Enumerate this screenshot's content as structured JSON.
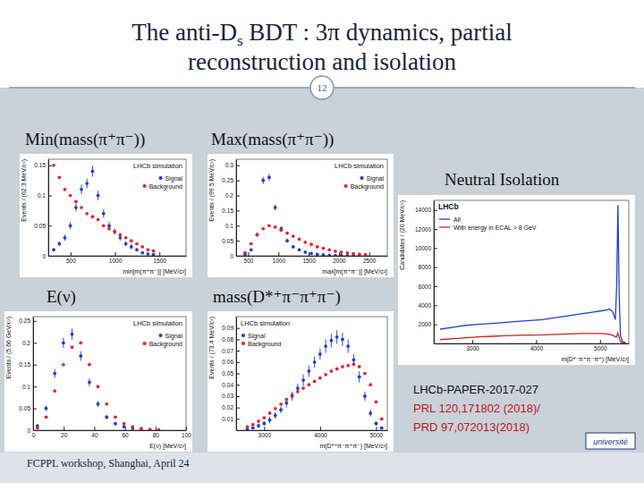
{
  "slide": {
    "title_lines": [
      [
        "The anti-D",
        "s",
        " BDT : 3π dynamics, partial"
      ],
      [
        "reconstruction and isolation"
      ]
    ],
    "page_number": "12",
    "references": [
      {
        "text": "LHCb-PAPER-2017-027",
        "color": "#111111"
      },
      {
        "text": "PRL 120,171802 (2018)/",
        "color": "#c0141c"
      },
      {
        "text": "PRD 97,072013(2018)",
        "color": "#c0141c"
      }
    ],
    "footer": "FCPPL workshop, Shanghai, April 24",
    "logo": "université"
  },
  "chart_data": [
    {
      "type": "scatter",
      "title": "Min(mass(π⁺π⁻))",
      "annotation": "LHCb simulation",
      "x_label": "min[m(π⁺π⁻)] [MeV/c²]",
      "y_label": "Events / (62.3 MeV/c²)",
      "x": [
        311,
        374,
        436,
        498,
        561,
        623,
        685,
        748,
        810,
        872,
        935,
        997,
        1059,
        1122,
        1184,
        1246,
        1309,
        1371,
        1433
      ],
      "series": [
        {
          "name": "Signal",
          "color": "#1c3bd6",
          "marker": "circle",
          "values": [
            0.01,
            0.02,
            0.03,
            0.05,
            0.08,
            0.11,
            0.12,
            0.14,
            0.1,
            0.07,
            0.05,
            0.04,
            0.03,
            0.02,
            0.015,
            0.01,
            0.005,
            0.003,
            0.002
          ],
          "errors": [
            0.003,
            0.004,
            0.005,
            0.006,
            0.007,
            0.008,
            0.008,
            0.009,
            0.008,
            0.007,
            0.006,
            0.005,
            0.005,
            0.004,
            0.004,
            0.003,
            0.002,
            0.002,
            0.002
          ]
        },
        {
          "name": "Background",
          "color": "#e3242b",
          "marker": "circle",
          "values": [
            0.15,
            0.13,
            0.11,
            0.1,
            0.09,
            0.08,
            0.07,
            0.065,
            0.06,
            0.05,
            0.045,
            0.04,
            0.035,
            0.03,
            0.025,
            0.02,
            0.015,
            0.01,
            0.008
          ]
        }
      ],
      "xlim": [
        250,
        1800
      ],
      "xticks": [
        500,
        1000,
        1500
      ],
      "ylim": [
        0,
        0.16
      ],
      "yticks": [
        0,
        0.05,
        0.1,
        0.15
      ],
      "legend": "upper right"
    },
    {
      "type": "scatter",
      "title": "Max(mass(π⁺π⁻))",
      "annotation": "LHCb simulation",
      "x_label": "max[m(π⁺π⁻)] [MeV/c²]",
      "y_label": "Events / (99.5 MeV/c²)",
      "x": [
        448,
        548,
        647,
        747,
        846,
        946,
        1045,
        1145,
        1244,
        1344,
        1443,
        1543,
        1642,
        1742,
        1841,
        1941,
        2040,
        2140,
        2239,
        2339,
        2438
      ],
      "series": [
        {
          "name": "Signal",
          "color": "#1c3bd6",
          "marker": "circle",
          "values": [
            0.005,
            0.02,
            0.07,
            0.25,
            0.26,
            0.16,
            0.09,
            0.05,
            0.03,
            0.02,
            0.012,
            0.008,
            0.005,
            0.003,
            0.002,
            0.001,
            0.001,
            0,
            0,
            0,
            0
          ],
          "errors": [
            0.002,
            0.004,
            0.007,
            0.012,
            0.012,
            0.01,
            0.008,
            0.006,
            0.005,
            0.004,
            0.003,
            0.003,
            0.002,
            0.002,
            0.001,
            0.001,
            0.001,
            0.001,
            0.001,
            0.001,
            0.001
          ]
        },
        {
          "name": "Background",
          "color": "#e3242b",
          "marker": "circle",
          "values": [
            0.01,
            0.04,
            0.07,
            0.09,
            0.1,
            0.095,
            0.085,
            0.075,
            0.065,
            0.055,
            0.045,
            0.038,
            0.03,
            0.025,
            0.02,
            0.015,
            0.012,
            0.009,
            0.007,
            0.005,
            0.004
          ]
        }
      ],
      "xlim": [
        300,
        2800
      ],
      "xticks": [
        500,
        1000,
        1500,
        2000,
        2500
      ],
      "ylim": [
        0,
        0.32
      ],
      "yticks": [
        0,
        0.05,
        0.1,
        0.15,
        0.2,
        0.25,
        0.3
      ],
      "legend": "upper right"
    },
    {
      "type": "scatter",
      "title": "E(ν)",
      "annotation": "LHCb simulation",
      "x_label": "E(ν) [MeV/c²]",
      "y_label": "Events / (5.66 GeV/c²)",
      "x": [
        2.83,
        8.49,
        14.15,
        19.81,
        25.47,
        31.13,
        36.79,
        42.45,
        48.11,
        53.77,
        59.43,
        65.09,
        70.75,
        76.41,
        82.07
      ],
      "series": [
        {
          "name": "Signal",
          "color": "#1c3bd6",
          "marker": "circle",
          "values": [
            0.01,
            0.05,
            0.13,
            0.2,
            0.22,
            0.17,
            0.11,
            0.06,
            0.03,
            0.015,
            0.008,
            0.004,
            0.002,
            0.001,
            0
          ],
          "errors": [
            0.003,
            0.006,
            0.01,
            0.012,
            0.013,
            0.011,
            0.009,
            0.007,
            0.005,
            0.004,
            0.003,
            0.002,
            0.001,
            0.001,
            0.001
          ]
        },
        {
          "name": "Background",
          "color": "#e3242b",
          "marker": "circle",
          "values": [
            0.005,
            0.03,
            0.09,
            0.15,
            0.19,
            0.2,
            0.15,
            0.1,
            0.06,
            0.03,
            0.015,
            0.008,
            0.004,
            0.002,
            0.001
          ]
        }
      ],
      "xlim": [
        0,
        100
      ],
      "xticks": [
        0,
        20,
        40,
        60,
        80,
        100
      ],
      "ylim": [
        0,
        0.26
      ],
      "yticks": [
        0,
        0.05,
        0.1,
        0.15,
        0.2,
        0.25
      ],
      "legend": "upper right"
    },
    {
      "type": "scatter",
      "title": "mass(D*⁺π⁻π⁺π⁻)",
      "annotation": "LHCb simulation",
      "x_label": "m(D*⁺π⁻π⁺π⁻) [MeV/c²]",
      "y_label": "Events / (73.4 MeV/c²)",
      "x": [
        2700,
        2800,
        2900,
        3000,
        3100,
        3200,
        3300,
        3400,
        3500,
        3600,
        3700,
        3800,
        3900,
        4000,
        4100,
        4200,
        4300,
        4400,
        4500,
        4600,
        4700,
        4800,
        4900,
        5000,
        5100
      ],
      "series": [
        {
          "name": "Signal",
          "color": "#1c3bd6",
          "marker": "circle",
          "values": [
            0.001,
            0.002,
            0.004,
            0.006,
            0.009,
            0.013,
            0.018,
            0.024,
            0.03,
            0.037,
            0.044,
            0.052,
            0.06,
            0.067,
            0.074,
            0.079,
            0.082,
            0.08,
            0.074,
            0.062,
            0.047,
            0.03,
            0.015,
            0.006,
            0.002
          ],
          "errors": [
            0.001,
            0.001,
            0.002,
            0.002,
            0.003,
            0.003,
            0.003,
            0.004,
            0.004,
            0.004,
            0.005,
            0.005,
            0.005,
            0.005,
            0.006,
            0.006,
            0.006,
            0.006,
            0.006,
            0.005,
            0.005,
            0.004,
            0.003,
            0.002,
            0.001
          ]
        },
        {
          "name": "Background",
          "color": "#e3242b",
          "marker": "circle",
          "values": [
            0.003,
            0.005,
            0.008,
            0.011,
            0.015,
            0.019,
            0.023,
            0.027,
            0.031,
            0.034,
            0.037,
            0.04,
            0.043,
            0.046,
            0.049,
            0.052,
            0.054,
            0.056,
            0.057,
            0.058,
            0.056,
            0.05,
            0.04,
            0.025,
            0.01
          ]
        }
      ],
      "xlim": [
        2500,
        5200
      ],
      "xticks": [
        3000,
        4000,
        5000
      ],
      "ylim": [
        0,
        0.1
      ],
      "yticks": [
        0.01,
        0.02,
        0.03,
        0.04,
        0.05,
        0.06,
        0.07,
        0.08,
        0.09
      ],
      "legend": "upper left"
    },
    {
      "type": "line",
      "title": "Neutral Isolation",
      "annotation": "LHCb",
      "x_label": "m(D*⁻π⁺π⁻π⁺) [MeV/c²]",
      "y_label": "Candidates / (20 MeV/c²)",
      "x": [
        2500,
        2700,
        2900,
        3100,
        3300,
        3500,
        3700,
        3900,
        4100,
        4300,
        4500,
        4700,
        4900,
        5000,
        5100,
        5150,
        5200,
        5240,
        5260,
        5280,
        5300,
        5320,
        5350,
        5400
      ],
      "series": [
        {
          "name": "All",
          "color": "#2040d0",
          "line_style": "solid",
          "values": [
            1500,
            1700,
            1900,
            2000,
            2100,
            2200,
            2300,
            2400,
            2500,
            2700,
            2900,
            3100,
            3300,
            3400,
            3500,
            3600,
            3300,
            2500,
            6000,
            14500,
            5000,
            800,
            200,
            100
          ]
        },
        {
          "name": "With energy in ECAL > 8 GeV",
          "color": "#d02020",
          "line_style": "solid",
          "values": [
            400,
            500,
            600,
            700,
            750,
            800,
            850,
            880,
            900,
            950,
            1000,
            1050,
            1050,
            1050,
            1000,
            950,
            850,
            700,
            700,
            1100,
            600,
            200,
            60,
            30
          ]
        }
      ],
      "xlim": [
        2400,
        5450
      ],
      "xticks": [
        3000,
        4000,
        5000
      ],
      "ylim": [
        0,
        15000
      ],
      "yticks": [
        2000,
        4000,
        6000,
        8000,
        10000,
        12000,
        14000
      ],
      "legend": "upper left"
    }
  ]
}
